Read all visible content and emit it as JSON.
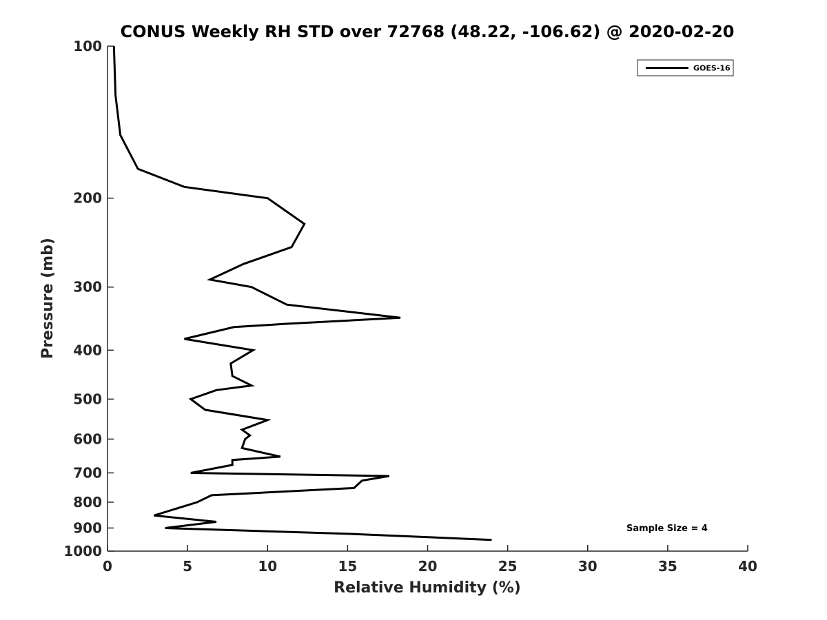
{
  "chart_data": {
    "type": "line",
    "title": "CONUS Weekly RH STD over 72768 (48.22, -106.62) @ 2020-02-20",
    "xlabel": "Relative Humidity (%)",
    "ylabel": "Pressure (mb)",
    "xlim": [
      0,
      40
    ],
    "ylim": [
      100,
      1000
    ],
    "y_scale": "log",
    "y_reversed": true,
    "xticks": [
      0,
      5,
      10,
      15,
      20,
      25,
      30,
      35,
      40
    ],
    "yticks": [
      100,
      200,
      300,
      400,
      500,
      600,
      700,
      800,
      900,
      1000
    ],
    "grid": false,
    "legend": {
      "placement": "top-right",
      "entries": [
        "GOES-16"
      ]
    },
    "annotation": "Sample Size = 4",
    "series": [
      {
        "name": "GOES-16",
        "color": "#000000",
        "points": [
          [
            0.4,
            100
          ],
          [
            0.5,
            125
          ],
          [
            0.8,
            150
          ],
          [
            1.9,
            175
          ],
          [
            4.8,
            190
          ],
          [
            10.0,
            200
          ],
          [
            12.3,
            225
          ],
          [
            11.5,
            250
          ],
          [
            8.5,
            270
          ],
          [
            6.4,
            290
          ],
          [
            9.0,
            300
          ],
          [
            11.2,
            325
          ],
          [
            18.3,
            345
          ],
          [
            11.0,
            355
          ],
          [
            7.9,
            360
          ],
          [
            4.8,
            380
          ],
          [
            9.1,
            400
          ],
          [
            7.7,
            425
          ],
          [
            7.8,
            450
          ],
          [
            9.0,
            470
          ],
          [
            6.8,
            480
          ],
          [
            5.2,
            500
          ],
          [
            6.1,
            525
          ],
          [
            10.0,
            550
          ],
          [
            8.4,
            575
          ],
          [
            8.9,
            590
          ],
          [
            8.6,
            600
          ],
          [
            8.4,
            625
          ],
          [
            10.8,
            650
          ],
          [
            7.8,
            660
          ],
          [
            7.8,
            675
          ],
          [
            5.2,
            700
          ],
          [
            17.6,
            710
          ],
          [
            15.9,
            725
          ],
          [
            15.4,
            750
          ],
          [
            6.5,
            775
          ],
          [
            5.6,
            800
          ],
          [
            2.9,
            850
          ],
          [
            6.8,
            875
          ],
          [
            3.6,
            900
          ],
          [
            15.4,
            925
          ],
          [
            24.0,
            950
          ]
        ]
      }
    ]
  }
}
